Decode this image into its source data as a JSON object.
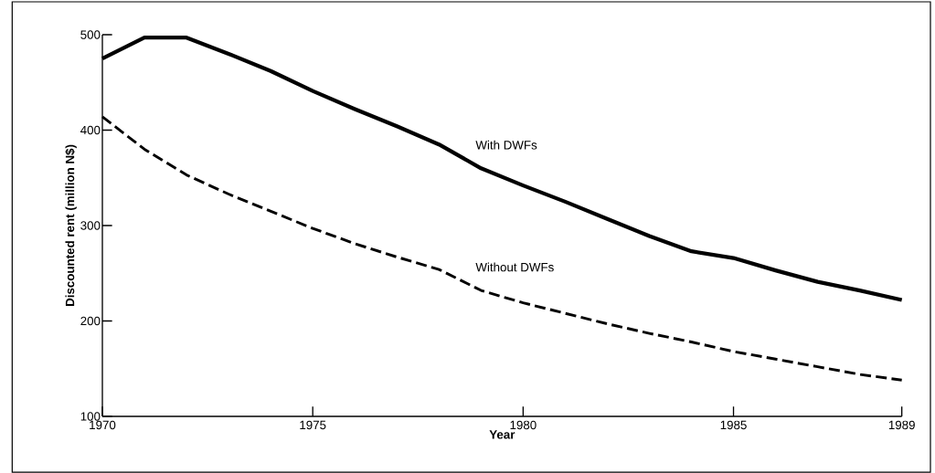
{
  "chart_data": {
    "type": "line",
    "xlabel": "Year",
    "ylabel": "Discounted rent (million N$)",
    "x": [
      1970,
      1971,
      1972,
      1973,
      1974,
      1975,
      1976,
      1977,
      1978,
      1979,
      1980,
      1981,
      1982,
      1983,
      1984,
      1985,
      1986,
      1987,
      1988,
      1989
    ],
    "series": [
      {
        "color": "#000000",
        "line_style": "solid",
        "values": [
          475,
          497,
          497,
          480,
          462,
          441,
          422,
          404,
          385,
          360,
          342,
          325,
          307,
          289,
          273,
          266,
          253,
          241,
          232,
          222
        ]
      },
      {
        "color": "#000000",
        "line_style": "dashed",
        "values": [
          414,
          380,
          353,
          333,
          315,
          297,
          281,
          267,
          254,
          232,
          219,
          208,
          197,
          187,
          178,
          168,
          160,
          152,
          144,
          138
        ]
      }
    ],
    "xlim": [
      1970,
      1989
    ],
    "xticks": [
      1970,
      1975,
      1980,
      1985,
      1989
    ],
    "ylim": [
      100,
      500
    ],
    "yticks": [
      100,
      200,
      300,
      400,
      500
    ],
    "marker": "none",
    "annotations": [
      {
        "text": "With DWFs",
        "x": 1979,
        "y": 360
      },
      {
        "text": "Without DWFs",
        "x": 1979,
        "y": 232
      }
    ]
  }
}
